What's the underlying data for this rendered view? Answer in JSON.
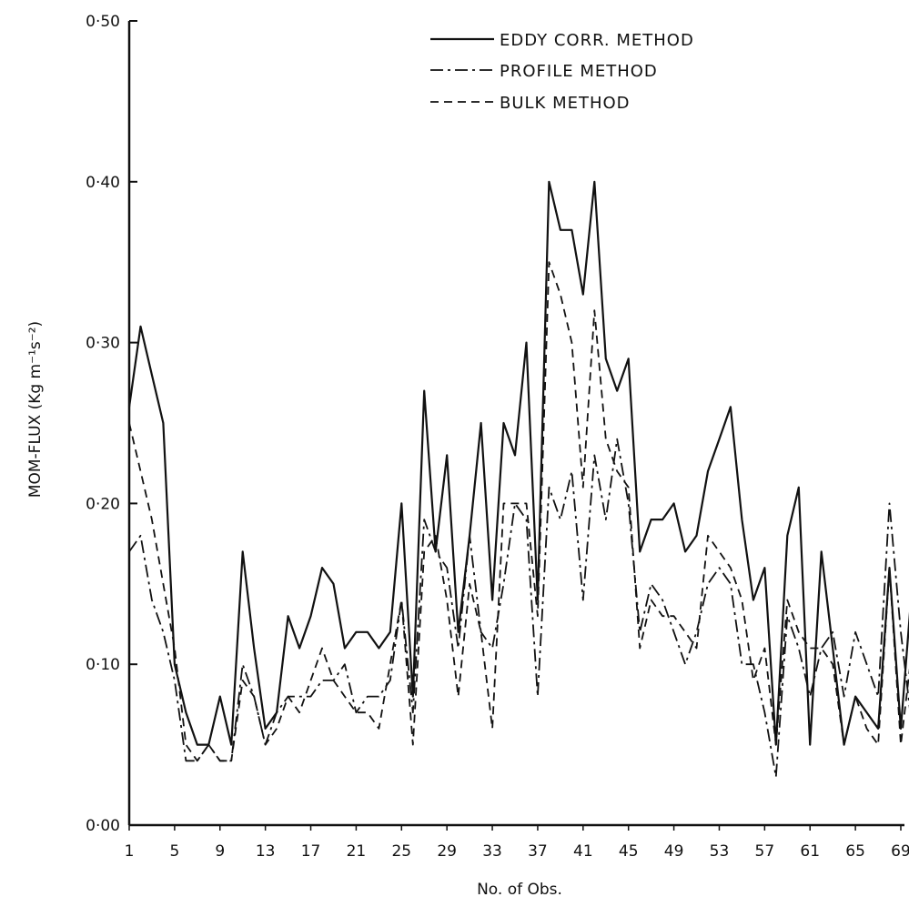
{
  "chart_data": {
    "type": "line",
    "xlabel": "No. of Obs.",
    "ylabel": "MOM-FLUX (Kg m⁻¹s⁻²)",
    "xlim": [
      1,
      70
    ],
    "ylim": [
      0.0,
      0.5
    ],
    "x_ticks": [
      1,
      5,
      9,
      13,
      17,
      21,
      25,
      29,
      33,
      37,
      41,
      45,
      49,
      53,
      57,
      61,
      65,
      69
    ],
    "x_tick_labels": [
      "1",
      "5",
      "9",
      "13",
      "17",
      "21",
      "25",
      "29",
      "33",
      "37",
      "41",
      "45",
      "49",
      "53",
      "57",
      "61",
      "65",
      "69"
    ],
    "y_ticks": [
      0.0,
      0.1,
      0.2,
      0.3,
      0.4,
      0.5
    ],
    "y_tick_labels": [
      "0·00",
      "0·10",
      "0·20",
      "0·30",
      "0·40",
      "0·50"
    ],
    "legend_position": "top-right",
    "grid": false,
    "series": [
      {
        "name": "EDDY CORR. METHOD",
        "style": "solid",
        "color": "#111111",
        "x": [
          1,
          2,
          3,
          4,
          5,
          6,
          7,
          8,
          9,
          10,
          11,
          12,
          13,
          14,
          15,
          16,
          17,
          18,
          19,
          20,
          21,
          22,
          23,
          24,
          25,
          26,
          27,
          28,
          29,
          30,
          31,
          32,
          33,
          34,
          35,
          36,
          37,
          38,
          39,
          40,
          41,
          42,
          43,
          44,
          45,
          46,
          47,
          48,
          49,
          50,
          51,
          52,
          53,
          54,
          55,
          56,
          57,
          58,
          59,
          60,
          61,
          62,
          63,
          64,
          65,
          66,
          67,
          68,
          69,
          70
        ],
        "values": [
          0.26,
          0.31,
          0.28,
          0.25,
          0.1,
          0.07,
          0.05,
          0.05,
          0.08,
          0.05,
          0.17,
          0.11,
          0.06,
          0.07,
          0.13,
          0.11,
          0.13,
          0.16,
          0.15,
          0.11,
          0.12,
          0.12,
          0.11,
          0.12,
          0.2,
          0.08,
          0.27,
          0.17,
          0.23,
          0.12,
          0.18,
          0.25,
          0.14,
          0.25,
          0.23,
          0.3,
          0.14,
          0.4,
          0.37,
          0.37,
          0.33,
          0.4,
          0.29,
          0.27,
          0.29,
          0.17,
          0.19,
          0.19,
          0.2,
          0.17,
          0.18,
          0.22,
          0.24,
          0.26,
          0.19,
          0.14,
          0.16,
          0.05,
          0.18,
          0.21,
          0.05,
          0.17,
          0.11,
          0.05,
          0.08,
          0.07,
          0.06,
          0.16,
          0.06,
          0.15
        ]
      },
      {
        "name": "PROFILE METHOD",
        "style": "dashdot",
        "color": "#111111",
        "x": [
          1,
          2,
          3,
          4,
          5,
          6,
          7,
          8,
          9,
          10,
          11,
          12,
          13,
          14,
          15,
          16,
          17,
          18,
          19,
          20,
          21,
          22,
          23,
          24,
          25,
          26,
          27,
          28,
          29,
          30,
          31,
          32,
          33,
          34,
          35,
          36,
          37,
          38,
          39,
          40,
          41,
          42,
          43,
          44,
          45,
          46,
          47,
          48,
          49,
          50,
          51,
          52,
          53,
          54,
          55,
          56,
          57,
          58,
          59,
          60,
          61,
          62,
          63,
          64,
          65,
          66,
          67,
          68,
          69,
          70
        ],
        "values": [
          0.17,
          0.18,
          0.14,
          0.12,
          0.09,
          0.04,
          0.04,
          0.05,
          0.04,
          0.04,
          0.1,
          0.08,
          0.05,
          0.07,
          0.08,
          0.08,
          0.08,
          0.09,
          0.09,
          0.1,
          0.07,
          0.08,
          0.08,
          0.09,
          0.14,
          0.07,
          0.19,
          0.17,
          0.16,
          0.11,
          0.18,
          0.12,
          0.11,
          0.15,
          0.2,
          0.19,
          0.08,
          0.21,
          0.19,
          0.22,
          0.14,
          0.23,
          0.19,
          0.24,
          0.2,
          0.12,
          0.15,
          0.14,
          0.12,
          0.1,
          0.12,
          0.15,
          0.16,
          0.15,
          0.1,
          0.1,
          0.07,
          0.03,
          0.13,
          0.11,
          0.08,
          0.11,
          0.12,
          0.08,
          0.12,
          0.1,
          0.08,
          0.2,
          0.12,
          0.06
        ]
      },
      {
        "name": "BULK METHOD",
        "style": "dashed",
        "color": "#111111",
        "x": [
          1,
          2,
          3,
          4,
          5,
          6,
          7,
          8,
          9,
          10,
          11,
          12,
          13,
          14,
          15,
          16,
          17,
          18,
          19,
          20,
          21,
          22,
          23,
          24,
          25,
          26,
          27,
          28,
          29,
          30,
          31,
          32,
          33,
          34,
          35,
          36,
          37,
          38,
          39,
          40,
          41,
          42,
          43,
          44,
          45,
          46,
          47,
          48,
          49,
          50,
          51,
          52,
          53,
          54,
          55,
          56,
          57,
          58,
          59,
          60,
          61,
          62,
          63,
          64,
          65,
          66,
          67,
          68,
          69,
          70
        ],
        "values": [
          0.25,
          0.22,
          0.19,
          0.15,
          0.11,
          0.05,
          0.04,
          0.05,
          0.04,
          0.04,
          0.09,
          0.08,
          0.05,
          0.06,
          0.08,
          0.07,
          0.09,
          0.11,
          0.09,
          0.08,
          0.07,
          0.07,
          0.06,
          0.1,
          0.14,
          0.05,
          0.17,
          0.18,
          0.14,
          0.08,
          0.15,
          0.12,
          0.06,
          0.2,
          0.2,
          0.2,
          0.13,
          0.35,
          0.33,
          0.3,
          0.21,
          0.32,
          0.24,
          0.22,
          0.21,
          0.11,
          0.14,
          0.13,
          0.13,
          0.12,
          0.11,
          0.18,
          0.17,
          0.16,
          0.14,
          0.09,
          0.11,
          0.05,
          0.14,
          0.12,
          0.11,
          0.11,
          0.1,
          0.05,
          0.08,
          0.06,
          0.05,
          0.16,
          0.05,
          0.11
        ]
      }
    ]
  }
}
